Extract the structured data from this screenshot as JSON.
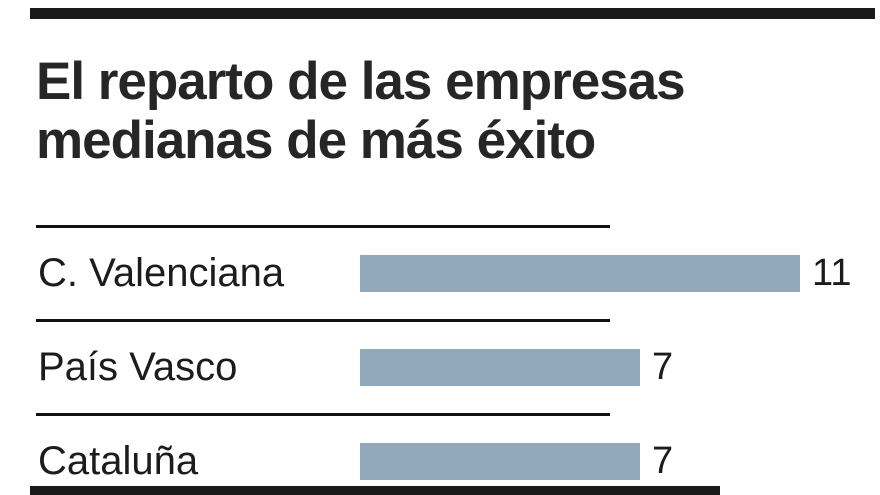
{
  "chart_data": {
    "type": "bar",
    "orientation": "horizontal",
    "title": "El reparto de las empresas medianas de más éxito",
    "title_lines": {
      "line1": "El reparto de las empresas",
      "line2": "medianas de más éxito"
    },
    "categories": [
      "C. Valenciana",
      "País Vasco",
      "Cataluña"
    ],
    "values": [
      11,
      7,
      7
    ],
    "value_labels": [
      "11",
      "7",
      "7"
    ],
    "xlim": [
      0,
      11
    ],
    "bar_color": "#91a9bb",
    "grid": false,
    "legend": false
  }
}
